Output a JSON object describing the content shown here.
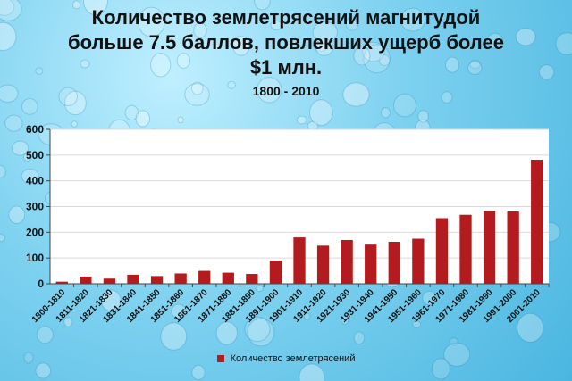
{
  "chart_data": {
    "type": "bar",
    "title_lines": [
      "Количество землетрясений магнитудой",
      "больше 7.5 баллов, повлекших ущерб более",
      "$1 млн."
    ],
    "subtitle": "1800 - 2010",
    "categories": [
      "1800-1810",
      "1811-1820",
      "1821-1830",
      "1831-1840",
      "1841-1850",
      "1851-1860",
      "1861-1870",
      "1871-1880",
      "1881-1890",
      "1891-1900",
      "1901-1910",
      "1911-1920",
      "1921-1930",
      "1931-1940",
      "1941-1950",
      "1951-1960",
      "1961-1970",
      "1971-1980",
      "1981-1990",
      "1991-2000",
      "2001-2010"
    ],
    "series": [
      {
        "name": "Количество землетрясений",
        "values": [
          8,
          28,
          20,
          35,
          30,
          40,
          50,
          43,
          38,
          90,
          180,
          148,
          170,
          152,
          163,
          175,
          255,
          268,
          283,
          281,
          482
        ]
      }
    ],
    "ylim": [
      0,
      600
    ],
    "yticks": [
      0,
      100,
      200,
      300,
      400,
      500,
      600
    ],
    "grid": true,
    "legend_position": "bottom",
    "colors": {
      "bar": "#b31b1f",
      "plot_bg": "#ffffff",
      "grid": "#d9d9d9"
    }
  }
}
